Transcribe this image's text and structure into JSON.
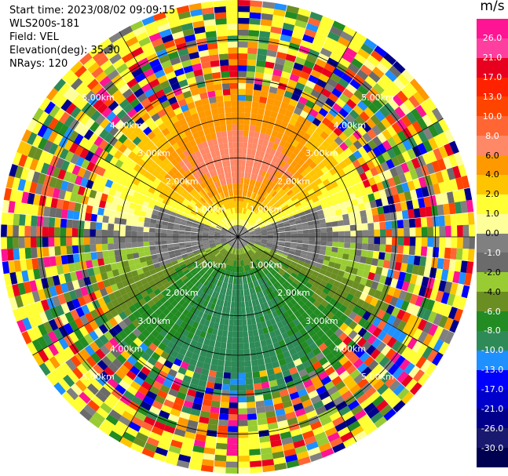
{
  "header": {
    "start_time": "Start time: 2023/08/02 09:09:15",
    "instrument": "WLS200s-181",
    "field": "Field: VEL",
    "elevation": "Elevation(deg): 35.30",
    "nrays": "NRays: 120"
  },
  "colorbar": {
    "unit": "m/s",
    "labels": [
      "26.0",
      "21.0",
      "17.0",
      "13.0",
      "10.0",
      "8.0",
      "6.0",
      "4.0",
      "2.0",
      "1.0",
      "0.0",
      "-1.0",
      "-2.0",
      "-4.0",
      "-6.0",
      "-8.0",
      "-10.0",
      "-13.0",
      "-17.0",
      "-21.0",
      "-26.0",
      "-30.0"
    ],
    "colors": [
      "#ff1493",
      "#ff3fa0",
      "#e8001f",
      "#ff2200",
      "#ff4400",
      "#ff6633",
      "#ff8866",
      "#ff9900",
      "#ffc400",
      "#ffff33",
      "#ffff99",
      "#808080",
      "#6b6b6b",
      "#99cc33",
      "#6b8e23",
      "#228b22",
      "#2e8b57",
      "#1e90ff",
      "#0000ff",
      "#0000cd",
      "#00008b",
      "#191970",
      "#000050"
    ]
  },
  "chart_data": {
    "type": "heatmap",
    "title": "",
    "field": "VEL",
    "units": "m/s",
    "elevation_deg": 35.3,
    "nrays": 120,
    "range_rings_km": [
      "1.00km",
      "2.00km",
      "3.00km",
      "4.00km",
      "5.00km"
    ],
    "range_ring_values": [
      1,
      2,
      3,
      4,
      5
    ],
    "max_range_km": 6.0,
    "ring_label_azimuths_deg": [
      315,
      45,
      135,
      225
    ],
    "pattern_summary": {
      "north_sector_1_3km": "positive 2 to 6 m/s (yellow-orange)",
      "north_sector_peak": "6 to 10 m/s near 2 km north",
      "south_sector_1_3km": "negative -2 to -8 m/s (green)",
      "east_west_near_center": "about 0 m/s (gray)",
      "beyond_3_5km": "noisy mixed values across full scale"
    }
  }
}
